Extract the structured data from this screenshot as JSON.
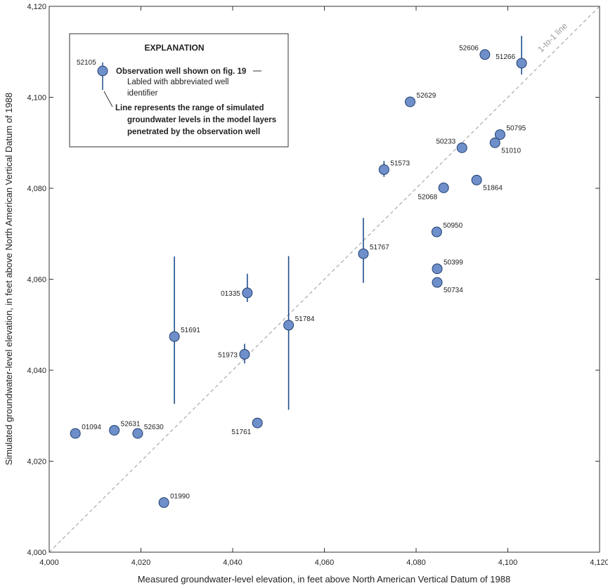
{
  "chart_data": {
    "type": "scatter",
    "xlabel": "Measured groundwater-level elevation, in feet above North American Vertical Datum of 1988",
    "ylabel": "Simulated groundwater-level elevation, in feet above North American Vertical Datum of 1988",
    "xlim": [
      4000,
      4120
    ],
    "ylim": [
      4000,
      4120
    ],
    "x_ticks": [
      4000,
      4020,
      4040,
      4060,
      4080,
      4100,
      4120
    ],
    "y_ticks": [
      4000,
      4020,
      4040,
      4060,
      4080,
      4100,
      4120
    ],
    "x_tick_labels": [
      "4,000",
      "4,020",
      "4,040",
      "4,060",
      "4,080",
      "4,100",
      "4,120"
    ],
    "y_tick_labels": [
      "4,000",
      "4,020",
      "4,040",
      "4,060",
      "4,080",
      "4,100",
      "4,120"
    ],
    "reference_line_label": "1-to-1 line",
    "point_color": "#6f8fca",
    "range_line_color": "#1f4e8c",
    "points": [
      {
        "id": "52606",
        "x": 4095.0,
        "y": 4109.4,
        "label_pos": "left-up"
      },
      {
        "id": "51266",
        "x": 4103.0,
        "y": 4107.5,
        "ymin": 4105.0,
        "ymax": 4113.5,
        "label_pos": "left-up"
      },
      {
        "id": "52629",
        "x": 4078.7,
        "y": 4099.0,
        "label_pos": "right-up"
      },
      {
        "id": "50795",
        "x": 4098.3,
        "y": 4091.8,
        "label_pos": "right-up"
      },
      {
        "id": "50233",
        "x": 4090.0,
        "y": 4088.9,
        "label_pos": "left-up"
      },
      {
        "id": "51010",
        "x": 4097.2,
        "y": 4090.0,
        "label_pos": "right-down"
      },
      {
        "id": "51573",
        "x": 4073.0,
        "y": 4084.1,
        "ymin": 4082.5,
        "ymax": 4086.0,
        "label_pos": "right-up"
      },
      {
        "id": "52068",
        "x": 4086.0,
        "y": 4080.1,
        "label_pos": "left-down"
      },
      {
        "id": "51864",
        "x": 4093.2,
        "y": 4081.8,
        "label_pos": "right-down"
      },
      {
        "id": "50950",
        "x": 4084.5,
        "y": 4070.4,
        "label_pos": "right-up"
      },
      {
        "id": "51767",
        "x": 4068.5,
        "y": 4065.6,
        "ymin": 4059.2,
        "ymax": 4073.5,
        "label_pos": "right-up"
      },
      {
        "id": "50399",
        "x": 4084.6,
        "y": 4062.3,
        "label_pos": "right-up"
      },
      {
        "id": "50734",
        "x": 4084.6,
        "y": 4059.3,
        "label_pos": "right-down"
      },
      {
        "id": "01335",
        "x": 4043.2,
        "y": 4057.0,
        "ymin": 4055.0,
        "ymax": 4061.2,
        "label_pos": "left"
      },
      {
        "id": "51784",
        "x": 4052.2,
        "y": 4049.9,
        "ymin": 4031.3,
        "ymax": 4065.1,
        "label_pos": "right-up"
      },
      {
        "id": "51691",
        "x": 4027.3,
        "y": 4047.4,
        "ymin": 4032.6,
        "ymax": 4065.0,
        "label_pos": "right-up"
      },
      {
        "id": "51973",
        "x": 4042.6,
        "y": 4043.5,
        "ymin": 4041.5,
        "ymax": 4045.8,
        "label_pos": "left"
      },
      {
        "id": "51761",
        "x": 4045.4,
        "y": 4028.4,
        "label_pos": "left-down"
      },
      {
        "id": "01094",
        "x": 4005.7,
        "y": 4026.1,
        "label_pos": "right-up"
      },
      {
        "id": "52631",
        "x": 4014.2,
        "y": 4026.8,
        "label_pos": "right-up"
      },
      {
        "id": "52630",
        "x": 4019.3,
        "y": 4026.1,
        "label_pos": "right-up"
      },
      {
        "id": "01990",
        "x": 4025.0,
        "y": 4010.9,
        "label_pos": "right-up"
      }
    ]
  },
  "legend": {
    "title": "EXPLANATION",
    "sample_id": "52105",
    "line1_bold": "Observation well shown on fig. 19",
    "line2": "Labled with abbreviated well",
    "line3": "identifier",
    "line4_bold": "Line represents the range of simulated",
    "line5_bold": "groundwater levels in the model layers",
    "line6_bold": "penetrated by the observation well"
  }
}
